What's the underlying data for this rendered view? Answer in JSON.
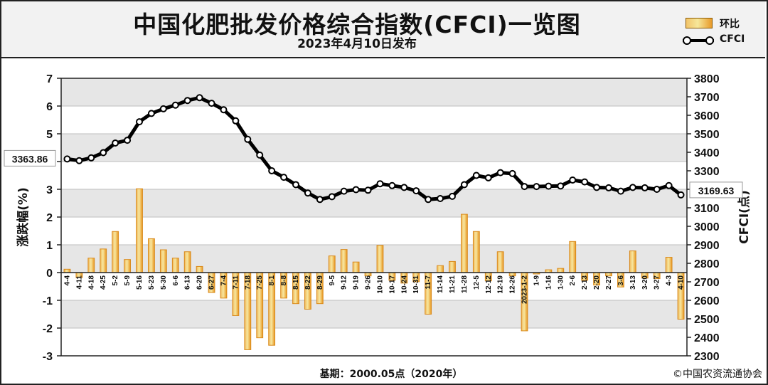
{
  "header": {
    "title": "中国化肥批发价格综合指数(CFCI)一览图",
    "subtitle": "2023年4月10日发布"
  },
  "legend": {
    "bar_label": "环比",
    "line_label": "CFCI"
  },
  "footer": {
    "base": "基期：2000.05点（2020年）",
    "copyright": "©中国农资流通协会"
  },
  "callouts": {
    "start_value": "3363.86",
    "end_value": "3169.63"
  },
  "colors": {
    "bar_fill": "#f3d27a",
    "bar_edge": "#d98a1c",
    "line": "#000000",
    "grid_band": "#e6e6e6"
  },
  "chart_data": {
    "type": "bar+line",
    "left_axis": {
      "label": "涨跌幅(%)",
      "ylim": [
        -3,
        7
      ],
      "ticks": [
        -3,
        -2,
        -1,
        0,
        1,
        2,
        3,
        4,
        5,
        6,
        7
      ]
    },
    "right_axis": {
      "label": "CFCI(点)",
      "ylim": [
        2300,
        3800
      ],
      "ticks": [
        2300,
        2400,
        2500,
        2600,
        2700,
        2800,
        2900,
        3000,
        3100,
        3200,
        3300,
        3400,
        3500,
        3600,
        3700,
        3800
      ]
    },
    "categories": [
      "4-4",
      "4-11",
      "4-18",
      "4-25",
      "5-2",
      "5-9",
      "5-16",
      "5-23",
      "5-30",
      "6-6",
      "6-13",
      "6-20",
      "6-27",
      "7-4",
      "7-11",
      "7-18",
      "7-25",
      "8-1",
      "8-8",
      "8-15",
      "8-22",
      "8-29",
      "9-5",
      "9-12",
      "9-19",
      "9-26",
      "10-10",
      "10-17",
      "10-24",
      "10-31",
      "11-7",
      "11-14",
      "11-21",
      "11-28",
      "12-5",
      "12-12",
      "12-19",
      "12-26",
      "2023-1-2",
      "1-9",
      "1-16",
      "1-30",
      "2-6",
      "2-13",
      "2-20",
      "2-27",
      "3-6",
      "3-13",
      "3-20",
      "3-27",
      "4-3",
      "4-10"
    ],
    "series": [
      {
        "name": "环比",
        "type": "bar",
        "axis": "left",
        "values": [
          0.12,
          -0.18,
          0.52,
          0.85,
          1.48,
          0.47,
          3.02,
          1.22,
          0.82,
          0.52,
          0.75,
          0.22,
          -0.72,
          -0.92,
          -1.55,
          -2.78,
          -2.35,
          -2.62,
          -0.92,
          -1.12,
          -1.32,
          -1.12,
          0.6,
          0.83,
          0.38,
          -0.12,
          0.98,
          -0.28,
          -0.38,
          -0.33,
          -1.5,
          0.25,
          0.4,
          2.1,
          1.48,
          -0.3,
          0.75,
          -0.12,
          -2.1,
          -0.05,
          0.1,
          0.15,
          1.12,
          -0.28,
          -0.45,
          -0.12,
          -0.52,
          0.78,
          -0.2,
          -0.22,
          0.55,
          -1.68
        ]
      },
      {
        "name": "CFCI",
        "type": "line",
        "axis": "right",
        "values": [
          3363.86,
          3355,
          3370,
          3398,
          3450,
          3465,
          3565,
          3610,
          3635,
          3655,
          3680,
          3695,
          3665,
          3630,
          3570,
          3470,
          3385,
          3300,
          3265,
          3225,
          3180,
          3145,
          3160,
          3190,
          3198,
          3195,
          3230,
          3220,
          3210,
          3192,
          3145,
          3150,
          3162,
          3225,
          3275,
          3262,
          3290,
          3285,
          3215,
          3215,
          3217,
          3218,
          3250,
          3240,
          3210,
          3208,
          3190,
          3210,
          3208,
          3200,
          3220,
          3169.63
        ]
      }
    ],
    "grid": true,
    "legend_position": "top-right"
  }
}
